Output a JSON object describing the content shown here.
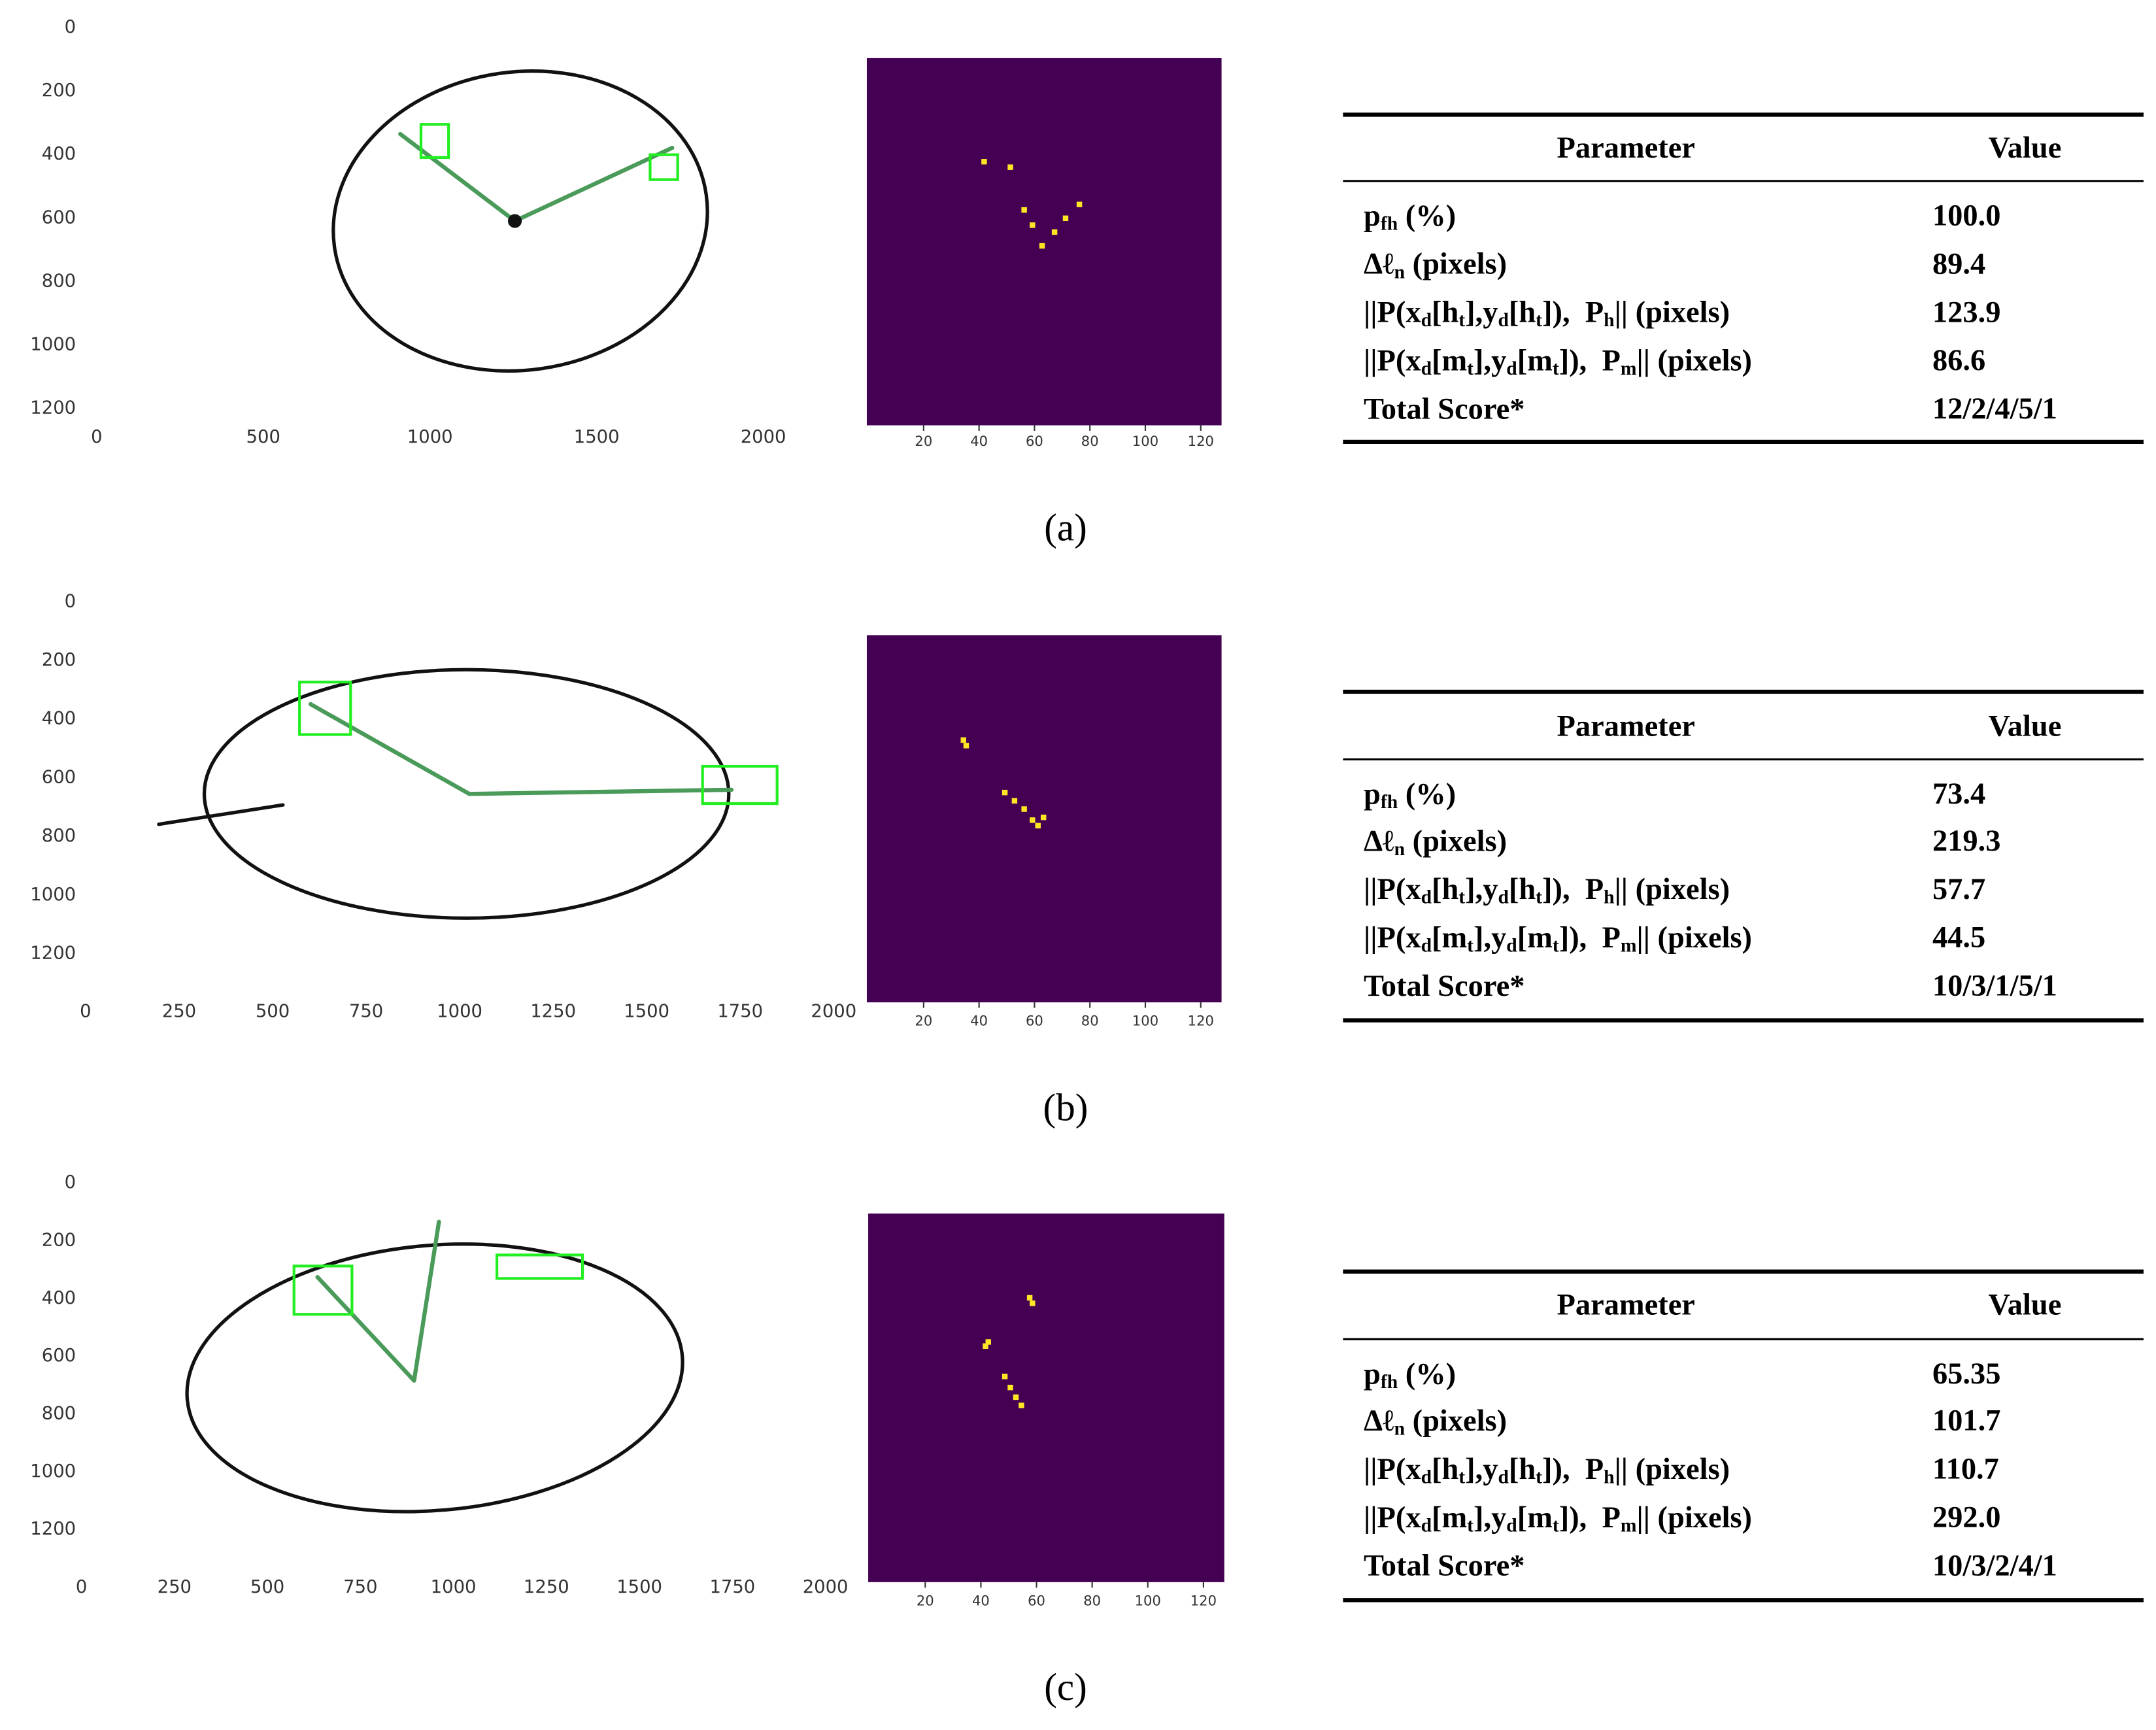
{
  "panels": [
    {
      "caption": "(a)",
      "drawing": {
        "yticks": [
          0,
          200,
          400,
          600,
          800,
          1000,
          1200
        ],
        "xticks": [
          0,
          500,
          1000,
          1500,
          2000
        ]
      },
      "mask": {
        "xticks": [
          20,
          40,
          60,
          80,
          100,
          120
        ]
      },
      "table": {
        "header": [
          "Parameter",
          "Value"
        ],
        "rows": [
          {
            "parameter": [
              {
                "t": "p"
              },
              {
                "sub": "fh"
              },
              {
                "t": " (%)"
              }
            ],
            "value": "100.0"
          },
          {
            "parameter": [
              {
                "t": "Δℓ"
              },
              {
                "sub": "n"
              },
              {
                "t": " (pixels)"
              }
            ],
            "value": "89.4"
          },
          {
            "parameter": [
              {
                "t": "||P(x"
              },
              {
                "sub": "d"
              },
              {
                "t": "[h"
              },
              {
                "sub": "t"
              },
              {
                "t": "],y"
              },
              {
                "sub": "d"
              },
              {
                "t": "[h"
              },
              {
                "sub": "t"
              },
              {
                "t": "]),  P"
              },
              {
                "sub": "h"
              },
              {
                "t": "|| (pixels)"
              }
            ],
            "value": "123.9"
          },
          {
            "parameter": [
              {
                "t": "||P(x"
              },
              {
                "sub": "d"
              },
              {
                "t": "[m"
              },
              {
                "sub": "t"
              },
              {
                "t": "],y"
              },
              {
                "sub": "d"
              },
              {
                "t": "[m"
              },
              {
                "sub": "t"
              },
              {
                "t": "]),  P"
              },
              {
                "sub": "m"
              },
              {
                "t": "|| (pixels)"
              }
            ],
            "value": "86.6"
          },
          {
            "parameter": [
              {
                "t": "Total Score*"
              }
            ],
            "value": "12/2/4/5/1"
          }
        ]
      }
    },
    {
      "caption": "(b)",
      "drawing": {
        "yticks": [
          0,
          200,
          400,
          600,
          800,
          1000,
          1200
        ],
        "xticks": [
          0,
          250,
          500,
          750,
          1000,
          1250,
          1500,
          1750,
          2000
        ]
      },
      "mask": {
        "xticks": [
          20,
          40,
          60,
          80,
          100,
          120
        ]
      },
      "table": {
        "header": [
          "Parameter",
          "Value"
        ],
        "rows": [
          {
            "parameter": [
              {
                "t": "p"
              },
              {
                "sub": "fh"
              },
              {
                "t": " (%)"
              }
            ],
            "value": "73.4"
          },
          {
            "parameter": [
              {
                "t": "Δℓ"
              },
              {
                "sub": "n"
              },
              {
                "t": " (pixels)"
              }
            ],
            "value": "219.3"
          },
          {
            "parameter": [
              {
                "t": "||P(x"
              },
              {
                "sub": "d"
              },
              {
                "t": "[h"
              },
              {
                "sub": "t"
              },
              {
                "t": "],y"
              },
              {
                "sub": "d"
              },
              {
                "t": "[h"
              },
              {
                "sub": "t"
              },
              {
                "t": "]),  P"
              },
              {
                "sub": "h"
              },
              {
                "t": "|| (pixels)"
              }
            ],
            "value": "57.7"
          },
          {
            "parameter": [
              {
                "t": "||P(x"
              },
              {
                "sub": "d"
              },
              {
                "t": "[m"
              },
              {
                "sub": "t"
              },
              {
                "t": "],y"
              },
              {
                "sub": "d"
              },
              {
                "t": "[m"
              },
              {
                "sub": "t"
              },
              {
                "t": "]),  P"
              },
              {
                "sub": "m"
              },
              {
                "t": "|| (pixels)"
              }
            ],
            "value": "44.5"
          },
          {
            "parameter": [
              {
                "t": "Total Score*"
              }
            ],
            "value": "10/3/1/5/1"
          }
        ]
      }
    },
    {
      "caption": "(c)",
      "drawing": {
        "yticks": [
          0,
          200,
          400,
          600,
          800,
          1000,
          1200
        ],
        "xticks": [
          0,
          250,
          500,
          750,
          1000,
          1250,
          1500,
          1750,
          2000
        ]
      },
      "mask": {
        "xticks": [
          20,
          40,
          60,
          80,
          100,
          120
        ]
      },
      "table": {
        "header": [
          "Parameter",
          "Value"
        ],
        "rows": [
          {
            "parameter": [
              {
                "t": "p"
              },
              {
                "sub": "fh"
              },
              {
                "t": " (%)"
              }
            ],
            "value": "65.35"
          },
          {
            "parameter": [
              {
                "t": "Δℓ"
              },
              {
                "sub": "n"
              },
              {
                "t": " (pixels)"
              }
            ],
            "value": "101.7"
          },
          {
            "parameter": [
              {
                "t": "||P(x"
              },
              {
                "sub": "d"
              },
              {
                "t": "[h"
              },
              {
                "sub": "t"
              },
              {
                "t": "],y"
              },
              {
                "sub": "d"
              },
              {
                "t": "[h"
              },
              {
                "sub": "t"
              },
              {
                "t": "]),  P"
              },
              {
                "sub": "h"
              },
              {
                "t": "|| (pixels)"
              }
            ],
            "value": "110.7"
          },
          {
            "parameter": [
              {
                "t": "||P(x"
              },
              {
                "sub": "d"
              },
              {
                "t": "[m"
              },
              {
                "sub": "t"
              },
              {
                "t": "],y"
              },
              {
                "sub": "d"
              },
              {
                "t": "[m"
              },
              {
                "sub": "t"
              },
              {
                "t": "]),  P"
              },
              {
                "sub": "m"
              },
              {
                "t": "|| (pixels)"
              }
            ],
            "value": "292.0"
          },
          {
            "parameter": [
              {
                "t": "Total Score*"
              }
            ],
            "value": "10/3/2/4/1"
          }
        ]
      }
    }
  ]
}
